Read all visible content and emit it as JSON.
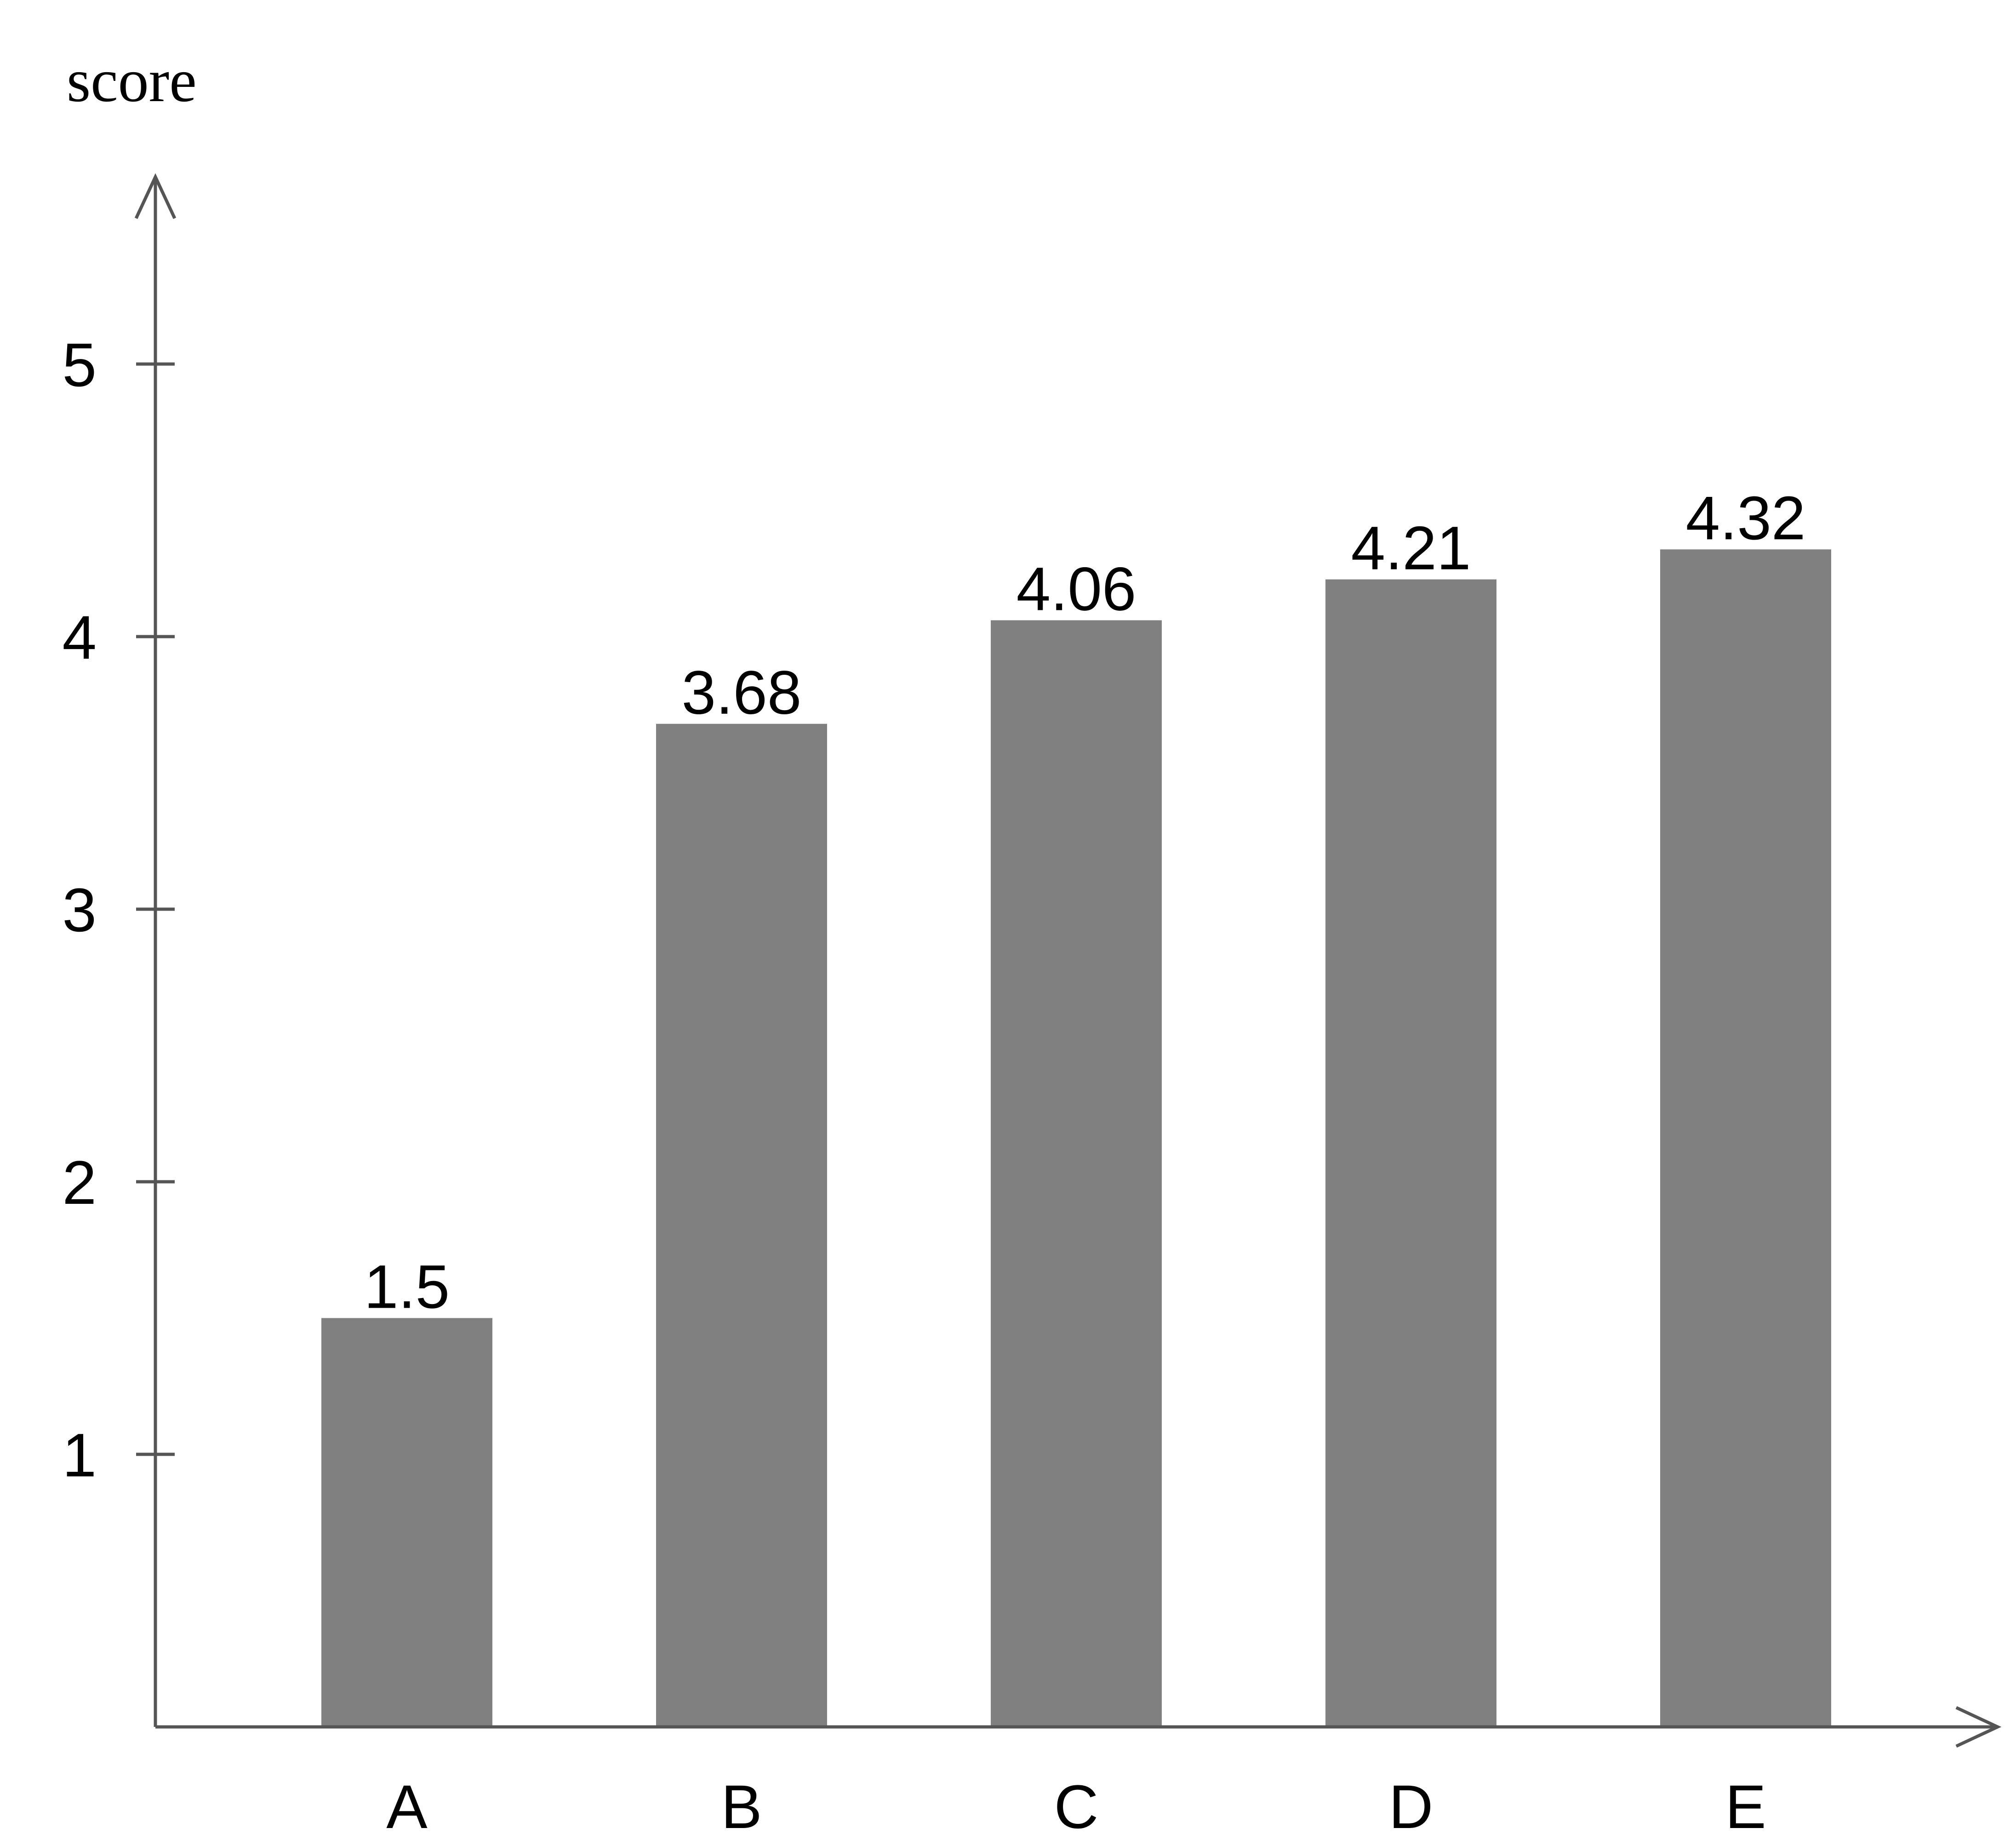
{
  "chart_data": {
    "type": "bar",
    "title": "",
    "xlabel": "",
    "ylabel": "score",
    "categories": [
      "A",
      "B",
      "C",
      "D",
      "E"
    ],
    "values": [
      1.5,
      3.68,
      4.06,
      4.21,
      4.32
    ],
    "value_labels": [
      "1.5",
      "3.68",
      "4.06",
      "4.21",
      "4.32"
    ],
    "yticks": [
      1,
      2,
      3,
      4,
      5
    ],
    "ylim": [
      0,
      5.7
    ],
    "grid": false,
    "legend": "none",
    "colors": {
      "bar": "#808080",
      "axis": "#555555",
      "text": "#000000"
    }
  }
}
